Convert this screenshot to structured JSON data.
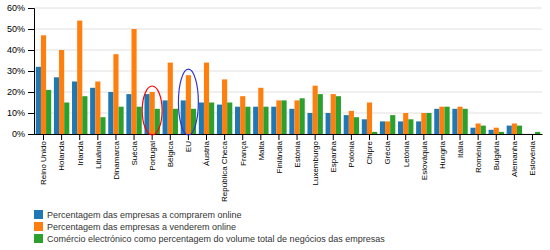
{
  "chart_data": {
    "type": "bar",
    "categories": [
      "Reino Unido",
      "Holanda",
      "Irlanda",
      "Lituânia",
      "Dinamarca",
      "Suécia",
      "Portugal",
      "Bélgica",
      "EU",
      "Áustria",
      "República Checa",
      "França",
      "Malta",
      "Finlândia",
      "Estónia",
      "Luxemburgo",
      "Espanha",
      "Polónia",
      "Chipre",
      "Grécia",
      "Letónia",
      "Eslováquia",
      "Hungria",
      "Itália",
      "Roménia",
      "Bulgária",
      "Alemanha",
      "Eslovénia"
    ],
    "series": [
      {
        "name": "Percentagem das empresas a comprarem online",
        "values": [
          32,
          27,
          25,
          22,
          20,
          19,
          19,
          16,
          16,
          15,
          14,
          13,
          13,
          13,
          12,
          10,
          10,
          9,
          7,
          6,
          6,
          6,
          12,
          12,
          3,
          2,
          4,
          0
        ]
      },
      {
        "name": "Percentagem das empresas a venderem online",
        "values": [
          47,
          40,
          54,
          25,
          38,
          50,
          20,
          34,
          28,
          34,
          26,
          18,
          22,
          16,
          16,
          23,
          19,
          11,
          15,
          6,
          10,
          10,
          13,
          13,
          5,
          3,
          5,
          0
        ]
      },
      {
        "name": "Comércio electrónico como percentagem do volume total de negócios das empresas",
        "values": [
          21,
          15,
          18,
          8,
          13,
          13,
          12,
          12,
          12,
          15,
          15,
          13,
          13,
          16,
          17,
          19,
          18,
          8,
          1,
          9,
          7,
          10,
          13,
          12,
          4,
          1,
          4,
          1
        ]
      }
    ],
    "ylim": [
      0,
      60
    ],
    "yticks": [
      {
        "value": 0,
        "label": "0%"
      },
      {
        "value": 10,
        "label": "10%"
      },
      {
        "value": 20,
        "label": "20%"
      },
      {
        "value": 30,
        "label": "30%"
      },
      {
        "value": 40,
        "label": "40%"
      },
      {
        "value": 50,
        "label": "50%"
      },
      {
        "value": 60,
        "label": "60%"
      }
    ],
    "grid": true,
    "legend": "bottom",
    "annotations": [
      {
        "category": "Portugal",
        "color": "red"
      },
      {
        "category": "EU",
        "color": "#3333cc"
      }
    ]
  }
}
